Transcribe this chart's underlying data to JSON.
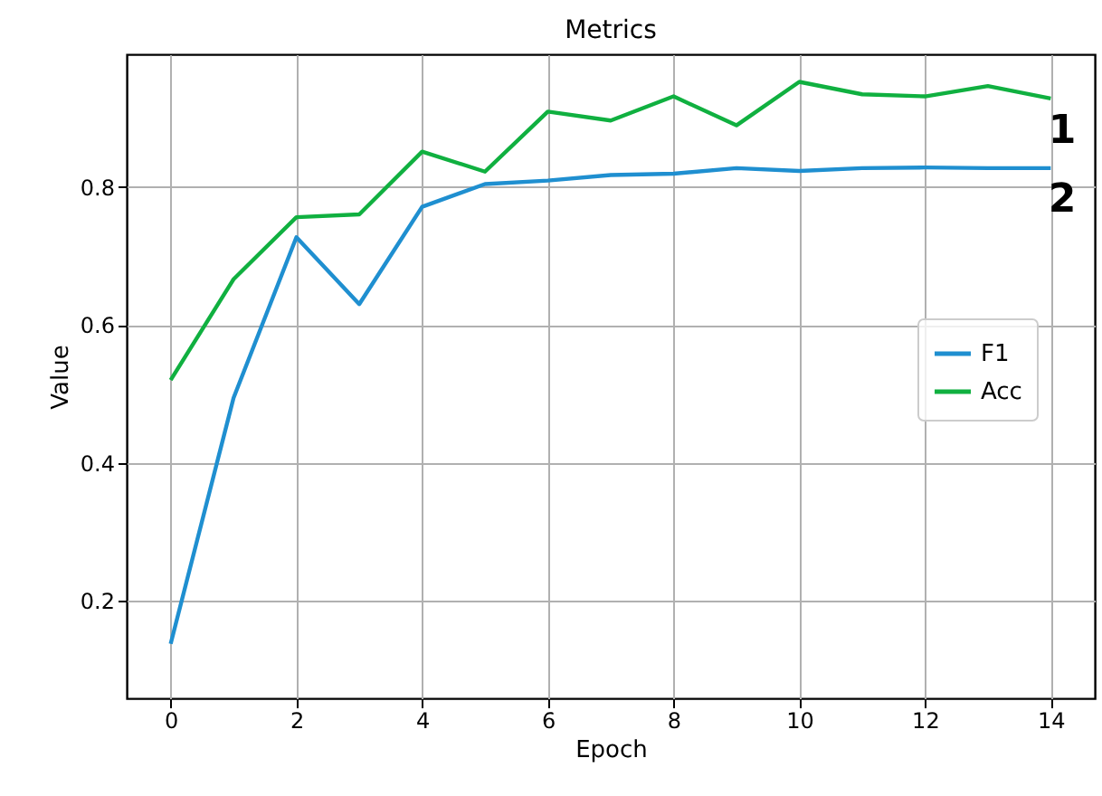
{
  "chart_data": {
    "type": "line",
    "title": "Metrics",
    "xlabel": "Epoch",
    "ylabel": "Value",
    "x": [
      0,
      1,
      2,
      3,
      4,
      5,
      6,
      7,
      8,
      9,
      10,
      11,
      12,
      13,
      14
    ],
    "series": [
      {
        "name": "F1",
        "color": "#1f8fd0",
        "values": [
          0.138,
          0.494,
          0.727,
          0.63,
          0.771,
          0.804,
          0.809,
          0.817,
          0.819,
          0.827,
          0.823,
          0.827,
          0.828,
          0.827,
          0.827
        ]
      },
      {
        "name": "Acc",
        "color": "#10b040",
        "values": [
          0.52,
          0.666,
          0.756,
          0.76,
          0.851,
          0.822,
          0.909,
          0.896,
          0.931,
          0.889,
          0.952,
          0.934,
          0.931,
          0.946,
          0.928
        ]
      }
    ],
    "xlim": [
      -0.7,
      14.7
    ],
    "xticks": [
      0,
      2,
      4,
      6,
      8,
      10,
      12,
      14
    ],
    "ylim": [
      0.059,
      0.992
    ],
    "yticks": [
      0.2,
      0.4,
      0.6,
      0.8
    ],
    "grid": true,
    "legend": "right",
    "line_style": "solid",
    "annotations": [
      "1",
      "2"
    ]
  }
}
